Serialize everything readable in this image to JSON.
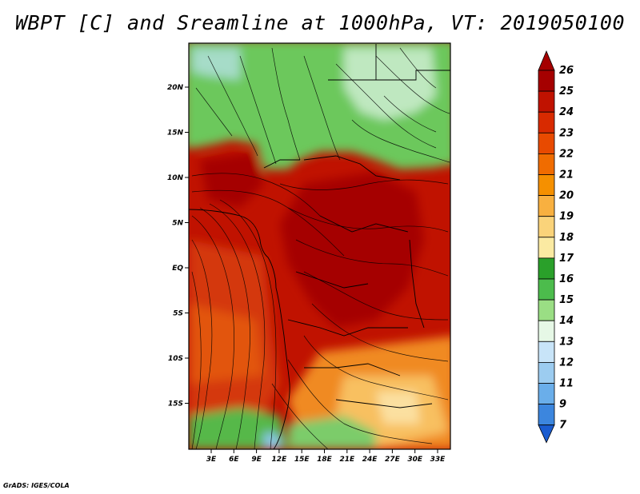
{
  "title": "WBPT [C] and Sreamline at 1000hPa, VT: 2019050100",
  "footer": "GrADS: IGES/COLA",
  "map": {
    "region": "Central Africa",
    "lat_range": [
      -20,
      24
    ],
    "lon_range": [
      0,
      35
    ],
    "lat_ticks": [
      "20N",
      "15N",
      "10N",
      "5N",
      "EQ",
      "5S",
      "10S",
      "15S"
    ],
    "lon_ticks": [
      "3E",
      "6E",
      "9E",
      "12E",
      "15E",
      "18E",
      "21E",
      "24E",
      "27E",
      "30E",
      "33E"
    ],
    "variable": "Wet-bulb potential temperature",
    "overlay": "Streamlines"
  },
  "colorbar": {
    "labels": [
      "26",
      "25",
      "24",
      "23",
      "22",
      "21",
      "20",
      "19",
      "18",
      "17",
      "16",
      "15",
      "14",
      "13",
      "12",
      "11",
      "9",
      "7"
    ],
    "colors": [
      "#a50000",
      "#c01200",
      "#d82a00",
      "#e84a00",
      "#f06c00",
      "#f59000",
      "#f8b040",
      "#fad37a",
      "#fbeaa2",
      "#2aa02a",
      "#4cbc4c",
      "#9ade84",
      "#e6f8e6",
      "#c8e4f8",
      "#9cccf0",
      "#6aaeea",
      "#3c86de",
      "#1a5cd0"
    ]
  }
}
